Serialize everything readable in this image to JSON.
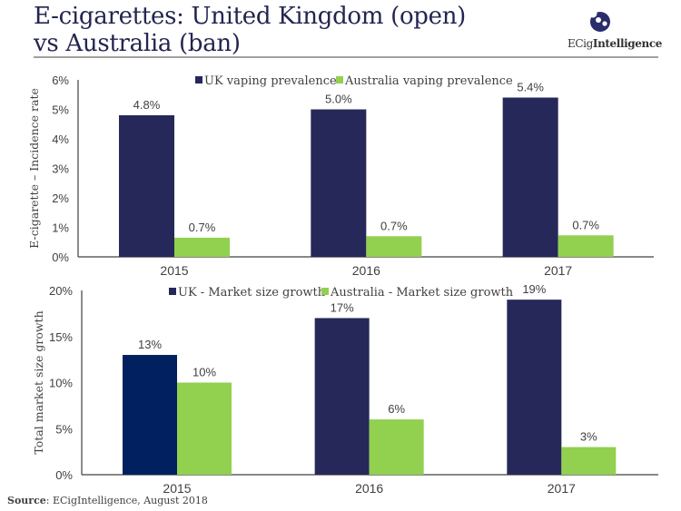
{
  "header": {
    "title_line1": "E-cigarettes: United Kingdom (open)",
    "title_line2": "vs Australia (ban)",
    "logo_icon": "ecigintelligence-logo-icon",
    "logo_text_light": "ECig",
    "logo_text_bold": "Intelligence"
  },
  "colors": {
    "uk": "#262859",
    "uk_highlight": "#002060",
    "australia": "#92d050",
    "axis": "#404040",
    "title": "#23254f"
  },
  "footer": {
    "source_label": "Source",
    "source_text": ": ECigIntelligence, August 2018"
  },
  "chart_data": [
    {
      "type": "bar",
      "title": "",
      "categories": [
        "2015",
        "2016",
        "2017"
      ],
      "series": [
        {
          "name": "UK vaping prevalence",
          "values": [
            4.8,
            5.0,
            5.4
          ],
          "labels": [
            "4.8%",
            "5.0%",
            "5.4%"
          ]
        },
        {
          "name": "Australia vaping prevalence",
          "values": [
            0.65,
            0.7,
            0.73
          ],
          "labels": [
            "0.7%",
            "0.7%",
            "0.7%"
          ]
        }
      ],
      "xlabel": "",
      "ylabel": "E-cigarette – Incidence rate",
      "ylim": [
        0,
        6
      ],
      "yticks": [
        0,
        1,
        2,
        3,
        4,
        5,
        6
      ],
      "ytick_labels": [
        "0%",
        "1%",
        "2%",
        "3%",
        "4%",
        "5%",
        "6%"
      ],
      "grid": false,
      "legend": "top-center"
    },
    {
      "type": "bar",
      "title": "",
      "categories": [
        "2015",
        "2016",
        "2017"
      ],
      "series": [
        {
          "name": "UK - Market size growth",
          "values": [
            13,
            17,
            19
          ],
          "labels": [
            "13%",
            "17%",
            "19%"
          ]
        },
        {
          "name": "Australia - Market size growth",
          "values": [
            10,
            6,
            3
          ],
          "labels": [
            "10%",
            "6%",
            "3%"
          ]
        }
      ],
      "xlabel": "",
      "ylabel": "Total market size growth",
      "ylim": [
        0,
        20
      ],
      "yticks": [
        0,
        5,
        10,
        15,
        20
      ],
      "ytick_labels": [
        "0%",
        "5%",
        "10%",
        "15%",
        "20%"
      ],
      "grid": false,
      "legend": "top-center"
    }
  ]
}
